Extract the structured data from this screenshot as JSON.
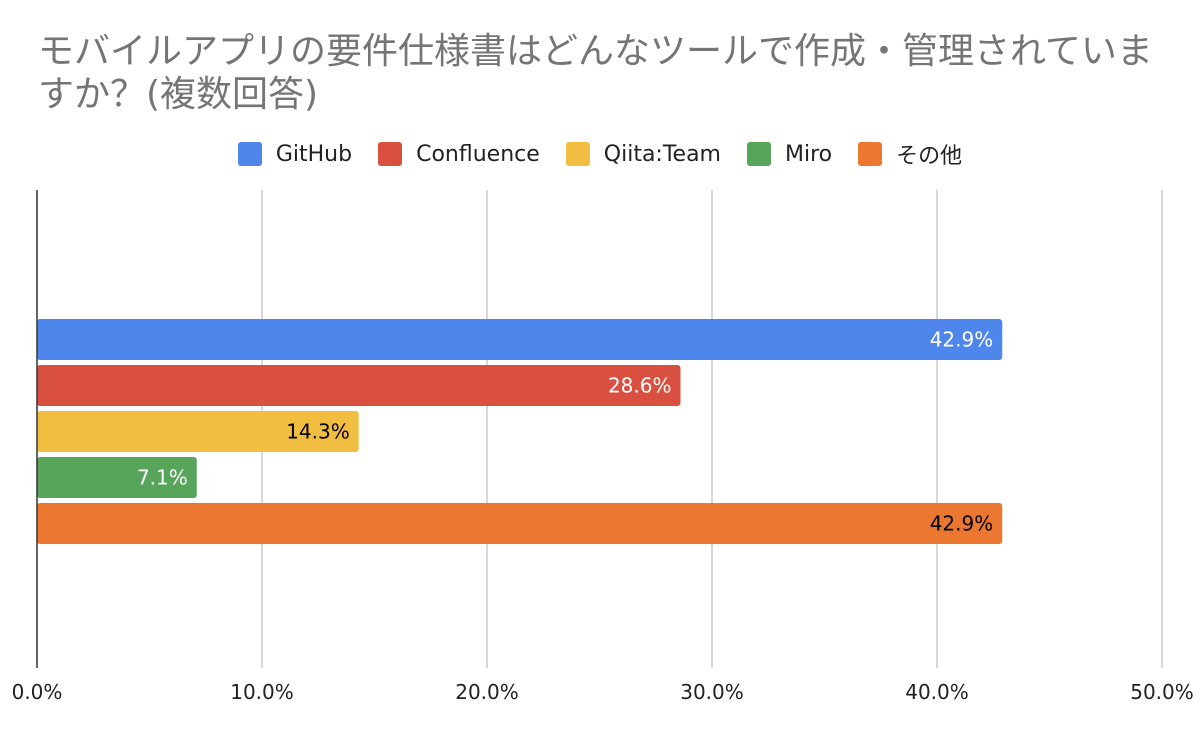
{
  "chart_data": {
    "type": "bar",
    "orientation": "horizontal",
    "title": "モバイルアプリの要件仕様書はどんなツールで作成・管理されていますか？(複数回答)",
    "categories": [
      "GitHub",
      "Confluence",
      "Qiita:Team",
      "Miro",
      "その他"
    ],
    "values": [
      42.9,
      28.6,
      14.3,
      7.1,
      42.9
    ],
    "data_labels": [
      "42.9%",
      "28.6%",
      "14.3%",
      "7.1%",
      "42.9%"
    ],
    "colors": [
      "#4f86ec",
      "#d94f40",
      "#f1be41",
      "#57a55a",
      "#ec7730"
    ],
    "label_colors": [
      "#ffffff",
      "#ffffff",
      "#000000",
      "#ffffff",
      "#000000"
    ],
    "xlim": [
      0,
      50
    ],
    "ticks": [
      0,
      10,
      20,
      30,
      40,
      50
    ],
    "tick_labels": [
      "0.0%",
      "10.0%",
      "20.0%",
      "30.0%",
      "40.0%",
      "50.0%"
    ],
    "legend_position": "top",
    "grid": true,
    "xlabel": "",
    "ylabel": ""
  }
}
